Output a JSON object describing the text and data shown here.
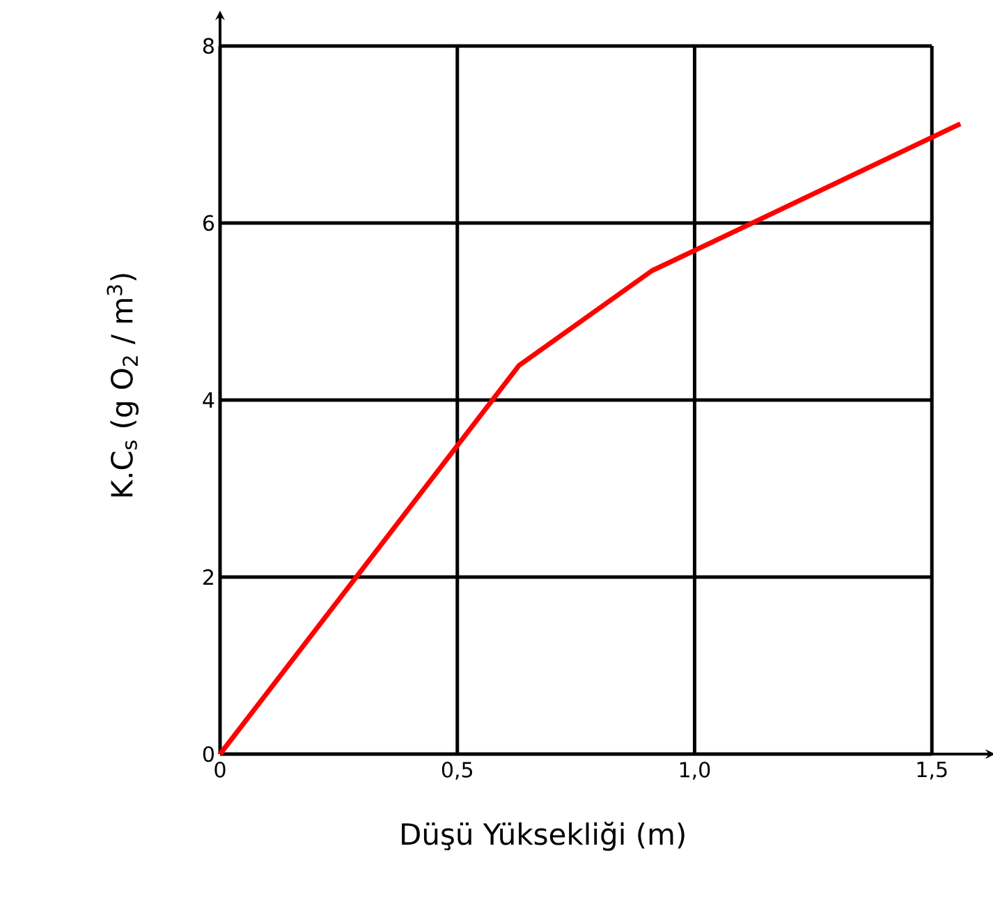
{
  "chart_data": {
    "type": "line",
    "xlabel": "Düşü Yüksekliği (m)",
    "ylabel": "K.C$_{s}$  (g O$_{2}$  / m$^{3}$)",
    "xlim": [
      0,
      1.62
    ],
    "ylim": [
      0,
      8.33
    ],
    "xticks": [
      {
        "value": 0,
        "label": "0"
      },
      {
        "value": 0.5,
        "label": "0,5"
      },
      {
        "value": 1.0,
        "label": "1,0"
      },
      {
        "value": 1.5,
        "label": "1,5"
      }
    ],
    "yticks": [
      0,
      2,
      4,
      6,
      8
    ],
    "grid": true,
    "marker": "none",
    "line_style": "solid",
    "series": [
      {
        "color": "#ff0000",
        "x": [
          0,
          0.63,
          0.91,
          1.56
        ],
        "values": [
          0,
          4.39,
          5.46,
          7.12
        ]
      }
    ]
  }
}
